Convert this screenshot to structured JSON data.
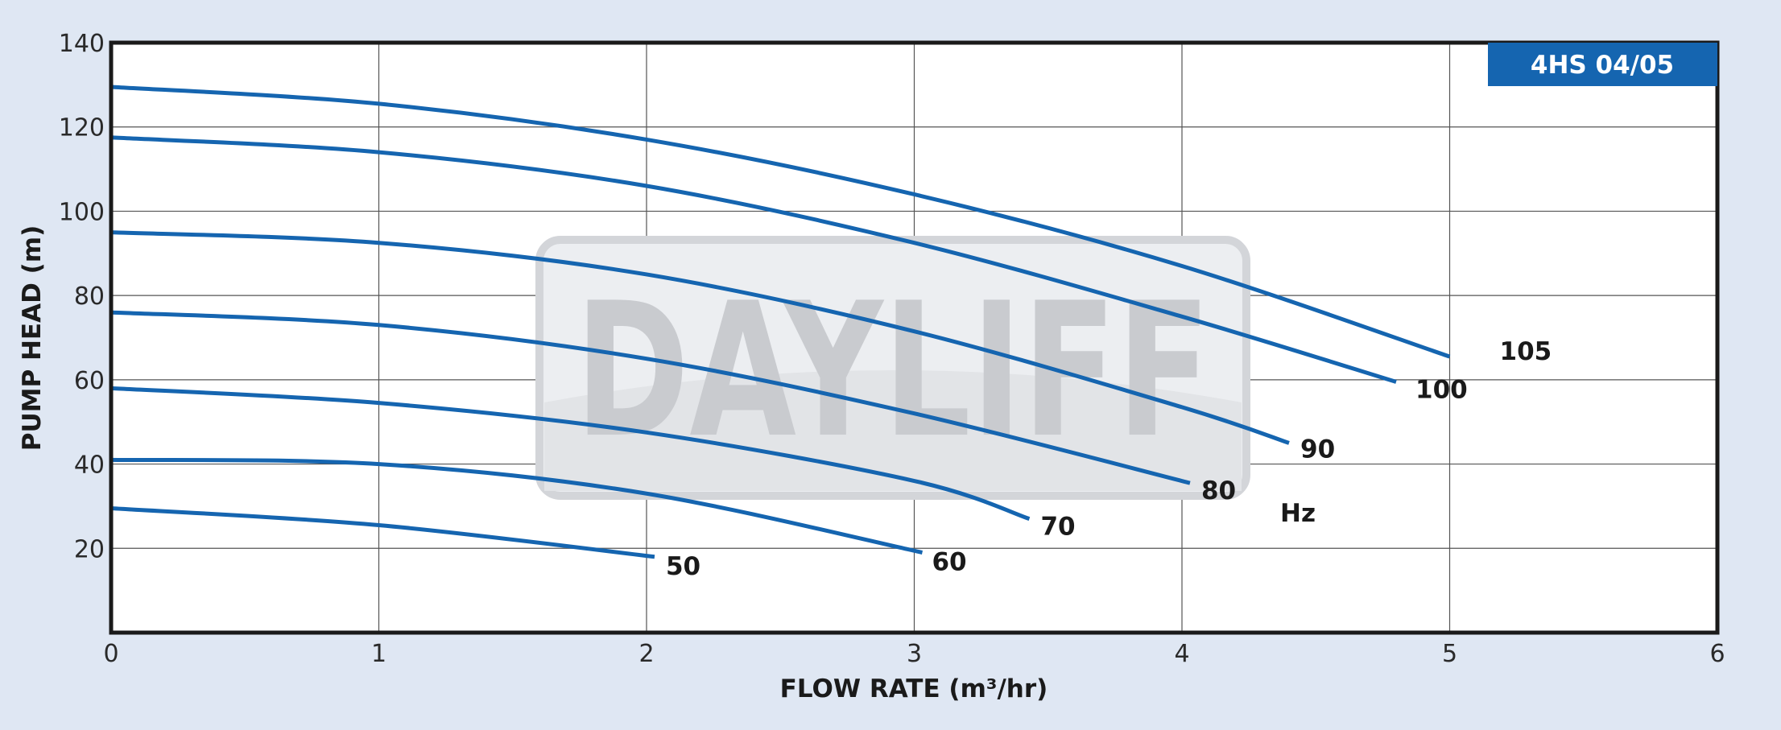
{
  "chart_data": {
    "type": "line",
    "title": "4HS 04/05",
    "xlabel": "FLOW RATE (m³/hr)",
    "ylabel": "PUMP HEAD (m)",
    "xlim": [
      0,
      6
    ],
    "ylim": [
      0,
      140
    ],
    "x_ticks": [
      "0",
      "1",
      "2",
      "3",
      "4",
      "5",
      "6"
    ],
    "y_ticks": [
      "20",
      "40",
      "60",
      "80",
      "100",
      "120",
      "140"
    ],
    "grid": true,
    "unit_label": "Hz",
    "watermark": "DAYLIFF",
    "line_color": "#1565b0",
    "series": [
      {
        "name": "105",
        "x": [
          0,
          1,
          2,
          3,
          4,
          5
        ],
        "y": [
          129.5,
          125.5,
          117,
          104,
          87,
          65.5
        ]
      },
      {
        "name": "100",
        "x": [
          0,
          1,
          2,
          3,
          4,
          4.8
        ],
        "y": [
          117.5,
          114,
          106,
          92.5,
          75,
          59.5
        ]
      },
      {
        "name": "90",
        "x": [
          0,
          1,
          2,
          3,
          4,
          4.4
        ],
        "y": [
          95,
          92.5,
          85,
          71.5,
          53.5,
          45
        ]
      },
      {
        "name": "80",
        "x": [
          0,
          1,
          2,
          3,
          4.03
        ],
        "y": [
          76,
          73,
          65,
          52,
          35.5
        ]
      },
      {
        "name": "70",
        "x": [
          0,
          1,
          2,
          3,
          3.43
        ],
        "y": [
          58,
          54.5,
          47.5,
          36,
          27
        ]
      },
      {
        "name": "60",
        "x": [
          0,
          1,
          2,
          3.03
        ],
        "y": [
          41,
          40,
          33,
          19
        ]
      },
      {
        "name": "50",
        "x": [
          0,
          1,
          2.03
        ],
        "y": [
          29.5,
          25.5,
          18
        ]
      }
    ]
  }
}
